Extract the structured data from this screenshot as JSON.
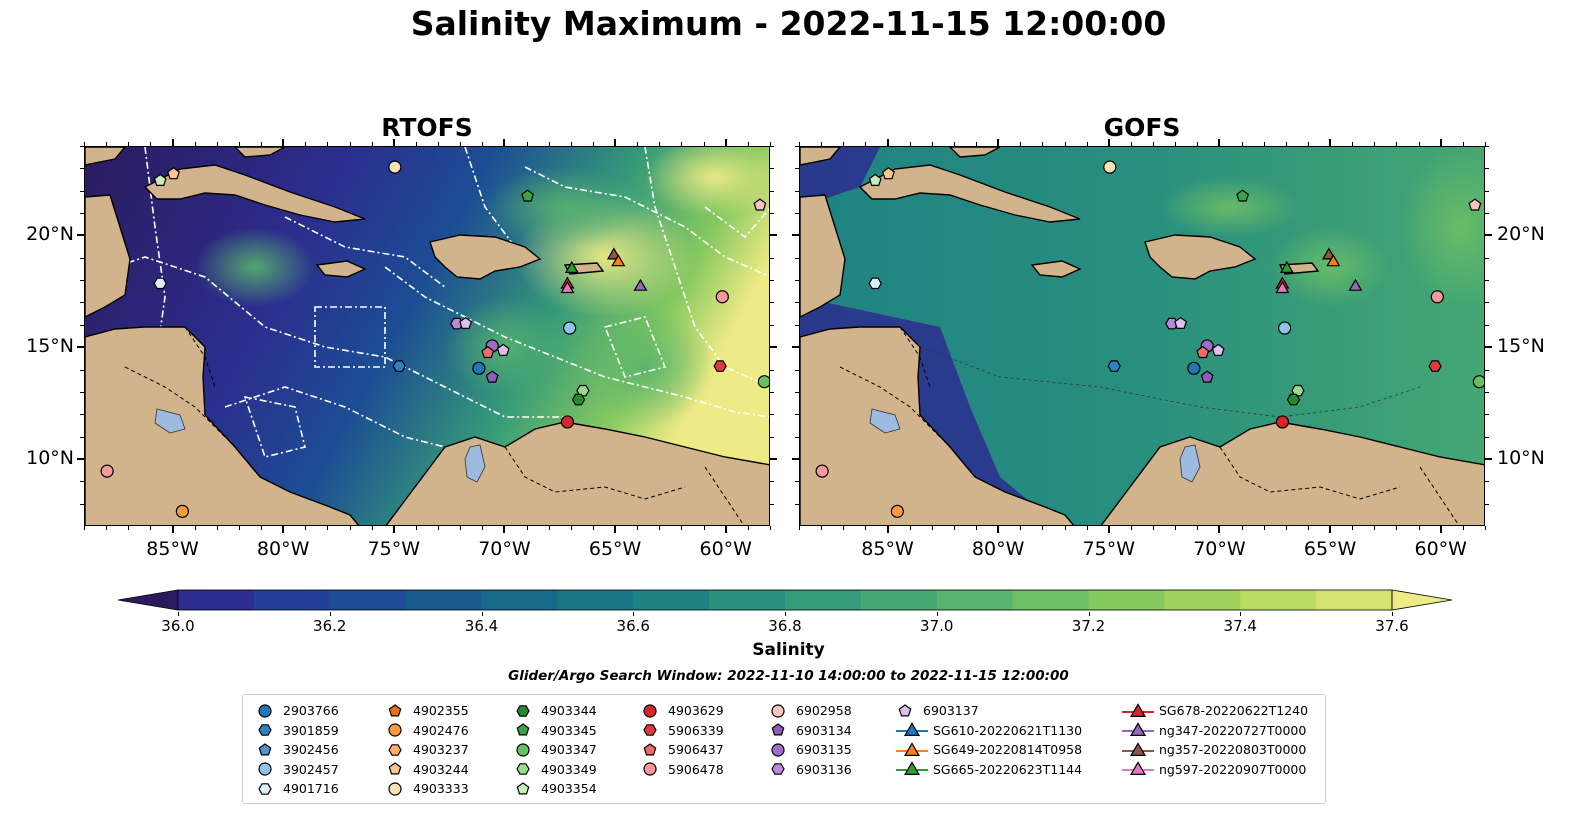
{
  "title": "Salinity Maximum - 2022-11-15 12:00:00",
  "panels": [
    {
      "title": "RTOFS"
    },
    {
      "title": "GOFS"
    }
  ],
  "lat_ticks": [
    "20°N",
    "15°N",
    "10°N"
  ],
  "lon_ticks": [
    "85°W",
    "80°W",
    "75°W",
    "70°W",
    "65°W",
    "60°W"
  ],
  "colorbar": {
    "label": "Salinity",
    "ticks": [
      "36.0",
      "36.2",
      "36.4",
      "36.6",
      "36.8",
      "37.0",
      "37.2",
      "37.4",
      "37.6"
    ],
    "min": 36.0,
    "max": 37.6,
    "colors": [
      "#2b1b5e",
      "#2c2d8e",
      "#233f98",
      "#1c4d94",
      "#195a8d",
      "#186889",
      "#1a7585",
      "#1f8282",
      "#298f7e",
      "#369b78",
      "#45a773",
      "#57b36d",
      "#6dbf66",
      "#86c95f",
      "#a0d25c",
      "#bcdb61",
      "#d6e36e",
      "#eeea85"
    ]
  },
  "search_window": "Glider/Argo Search Window: 2022-11-10 14:00:00 to 2022-11-15 12:00:00",
  "legend": {
    "columns": [
      [
        {
          "label": "2903766",
          "marker": "circle",
          "color": "#1f77b4"
        },
        {
          "label": "3901859",
          "marker": "hexagon",
          "color": "#2a83c4"
        },
        {
          "label": "3902456",
          "marker": "pentagon",
          "color": "#4a96d2"
        },
        {
          "label": "3902457",
          "marker": "circle",
          "color": "#8fc3e8"
        },
        {
          "label": "4901716",
          "marker": "hexagon",
          "color": "#dbeefa"
        }
      ],
      [
        {
          "label": "4902355",
          "marker": "pentagon",
          "color": "#e8720e"
        },
        {
          "label": "4902476",
          "marker": "circle",
          "color": "#fb9a3e"
        },
        {
          "label": "4903237",
          "marker": "hexagon",
          "color": "#fdae6b"
        },
        {
          "label": "4903244",
          "marker": "pentagon",
          "color": "#fdc78f"
        },
        {
          "label": "4903333",
          "marker": "circle",
          "color": "#fee0b6"
        }
      ],
      [
        {
          "label": "4903344",
          "marker": "hexagon",
          "color": "#238b2f"
        },
        {
          "label": "4903345",
          "marker": "pentagon",
          "color": "#3aa346"
        },
        {
          "label": "4903347",
          "marker": "circle",
          "color": "#66c164"
        },
        {
          "label": "4903349",
          "marker": "hexagon",
          "color": "#98dc8e"
        },
        {
          "label": "4903354",
          "marker": "pentagon",
          "color": "#c7efbd"
        }
      ],
      [
        {
          "label": "4903629",
          "marker": "circle",
          "color": "#d62728"
        },
        {
          "label": "5906339",
          "marker": "hexagon",
          "color": "#e0393b"
        },
        {
          "label": "5906437",
          "marker": "pentagon",
          "color": "#ef6a6a"
        },
        {
          "label": "5906478",
          "marker": "circle",
          "color": "#f59a98"
        }
      ],
      [
        {
          "label": "6902958",
          "marker": "circle",
          "color": "#fcc5c3"
        },
        {
          "label": "6903134",
          "marker": "pentagon",
          "color": "#8e5bb8"
        },
        {
          "label": "6903135",
          "marker": "circle",
          "color": "#9e6dc7"
        },
        {
          "label": "6903136",
          "marker": "hexagon",
          "color": "#b98ad8"
        }
      ],
      [
        {
          "label": "6903137",
          "marker": "pentagon",
          "color": "#dcc0ef"
        },
        {
          "label": "SG610-20220621T1130",
          "marker": "triangle-line",
          "color": "#1f77b4"
        },
        {
          "label": "SG649-20220814T0958",
          "marker": "triangle-line",
          "color": "#ff7f0e"
        },
        {
          "label": "SG665-20220623T1144",
          "marker": "triangle-line",
          "color": "#2ca02c"
        }
      ],
      [
        {
          "label": "SG678-20220622T1240",
          "marker": "triangle-line",
          "color": "#d62728"
        },
        {
          "label": "ng347-20220727T0000",
          "marker": "triangle-line",
          "color": "#9467bd"
        },
        {
          "label": "ng357-20220803T0000",
          "marker": "triangle-line",
          "color": "#8c564b"
        },
        {
          "label": "ng597-20220907T0000",
          "marker": "triangle-line",
          "color": "#e377c2"
        }
      ]
    ]
  },
  "map_extent": {
    "lon": [
      -89,
      -58
    ],
    "lat": [
      7,
      24
    ]
  },
  "observations": [
    {
      "lon": -85.0,
      "lat": 22.8,
      "marker": "pentagon",
      "color": "#fdc78f"
    },
    {
      "lon": -85.6,
      "lat": 22.5,
      "marker": "pentagon",
      "color": "#c7efbd"
    },
    {
      "lon": -75.0,
      "lat": 23.1,
      "marker": "circle",
      "color": "#fee0b6"
    },
    {
      "lon": -69.0,
      "lat": 21.8,
      "marker": "pentagon",
      "color": "#3aa346"
    },
    {
      "lon": -58.5,
      "lat": 21.4,
      "marker": "pentagon",
      "color": "#fcc5c3"
    },
    {
      "lon": -85.6,
      "lat": 17.9,
      "marker": "hexagon",
      "color": "#dbeefa"
    },
    {
      "lon": -72.2,
      "lat": 16.1,
      "marker": "hexagon",
      "color": "#b98ad8"
    },
    {
      "lon": -71.8,
      "lat": 16.1,
      "marker": "pentagon",
      "color": "#dcc0ef"
    },
    {
      "lon": -67.1,
      "lat": 15.9,
      "marker": "circle",
      "color": "#8fc3e8"
    },
    {
      "lon": -70.6,
      "lat": 15.1,
      "marker": "circle",
      "color": "#9e6dc7"
    },
    {
      "lon": -70.1,
      "lat": 14.9,
      "marker": "pentagon",
      "color": "#dcc0ef"
    },
    {
      "lon": -70.8,
      "lat": 14.8,
      "marker": "pentagon",
      "color": "#ef6a6a"
    },
    {
      "lon": -71.2,
      "lat": 14.1,
      "marker": "circle",
      "color": "#1f77b4"
    },
    {
      "lon": -70.6,
      "lat": 13.7,
      "marker": "pentagon",
      "color": "#8e5bb8"
    },
    {
      "lon": -74.8,
      "lat": 14.2,
      "marker": "hexagon",
      "color": "#2a83c4"
    },
    {
      "lon": -60.2,
      "lat": 17.3,
      "marker": "circle",
      "color": "#f59a98"
    },
    {
      "lon": -60.3,
      "lat": 14.2,
      "marker": "hexagon",
      "color": "#e0393b"
    },
    {
      "lon": -58.3,
      "lat": 13.5,
      "marker": "circle",
      "color": "#66c164"
    },
    {
      "lon": -66.5,
      "lat": 13.1,
      "marker": "hexagon",
      "color": "#98dc8e"
    },
    {
      "lon": -66.7,
      "lat": 12.7,
      "marker": "hexagon",
      "color": "#238b2f"
    },
    {
      "lon": -67.2,
      "lat": 11.7,
      "marker": "circle",
      "color": "#d62728"
    },
    {
      "lon": -88.0,
      "lat": 9.5,
      "marker": "circle",
      "color": "#f59a98"
    },
    {
      "lon": -84.6,
      "lat": 7.7,
      "marker": "circle",
      "color": "#fb9a3e"
    },
    {
      "lon": -65.1,
      "lat": 19.2,
      "marker": "triangle",
      "color": "#8c564b"
    },
    {
      "lon": -64.9,
      "lat": 18.9,
      "marker": "triangle",
      "color": "#ff7f0e"
    },
    {
      "lon": -67.0,
      "lat": 18.6,
      "marker": "triangle",
      "color": "#2ca02c"
    },
    {
      "lon": -67.2,
      "lat": 17.9,
      "marker": "triangle",
      "color": "#d62728"
    },
    {
      "lon": -67.2,
      "lat": 17.7,
      "marker": "triangle",
      "color": "#e377c2"
    },
    {
      "lon": -63.9,
      "lat": 17.8,
      "marker": "triangle",
      "color": "#9467bd"
    }
  ]
}
